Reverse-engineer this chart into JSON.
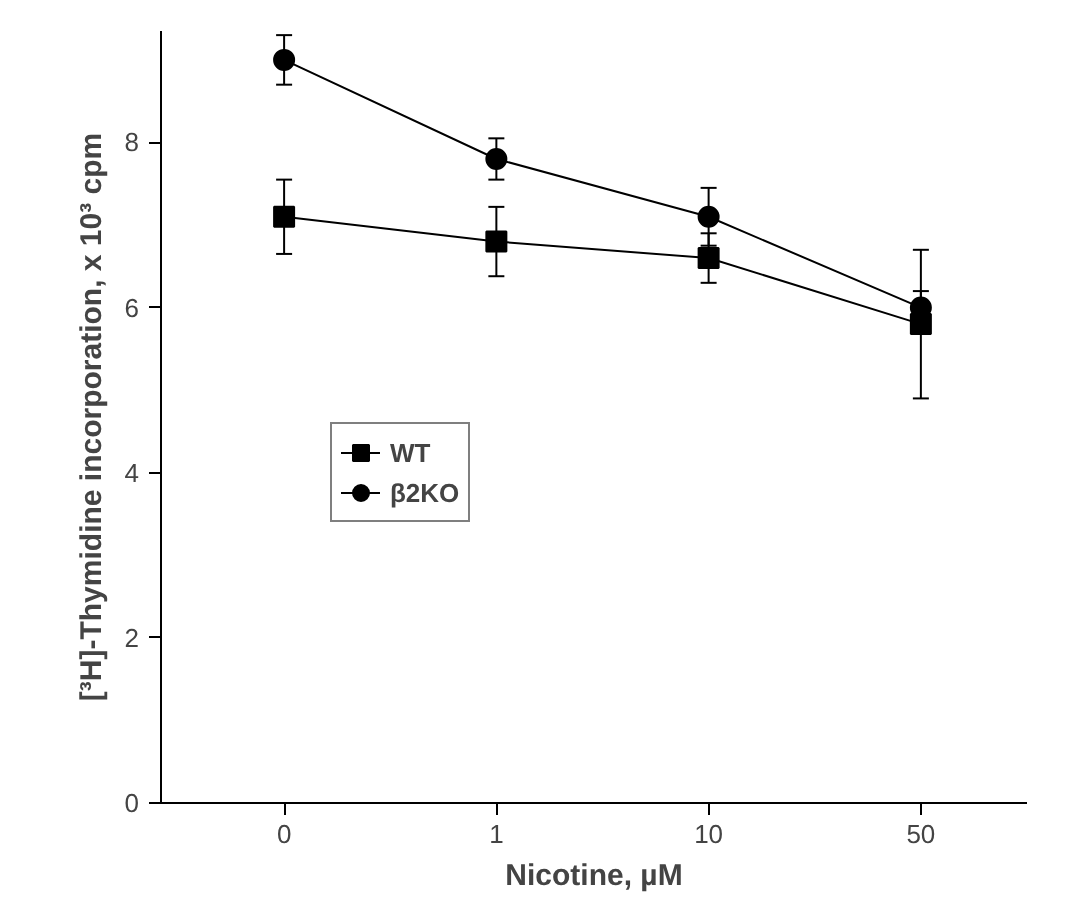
{
  "chart_data": {
    "type": "line",
    "xlabel": "Nicotine, µM",
    "ylabel": "[³H]-Thymidine incorporation, x 10³ cpm",
    "categories": [
      "0",
      "1",
      "10",
      "50"
    ],
    "ylim": [
      0,
      9.35
    ],
    "yticks": [
      0,
      2,
      4,
      6,
      8
    ],
    "grid": false,
    "legend": "left",
    "series": [
      {
        "name": "WT",
        "color": "#000000",
        "marker": "square",
        "values": [
          7.1,
          6.8,
          6.6,
          5.8
        ],
        "errors": [
          0.45,
          0.42,
          0.3,
          0.9
        ]
      },
      {
        "name": "β2KO",
        "color": "#000000",
        "marker": "circle",
        "values": [
          9.0,
          7.8,
          7.1,
          6.0
        ],
        "errors": [
          0.3,
          0.25,
          0.35,
          0.2
        ]
      }
    ]
  }
}
